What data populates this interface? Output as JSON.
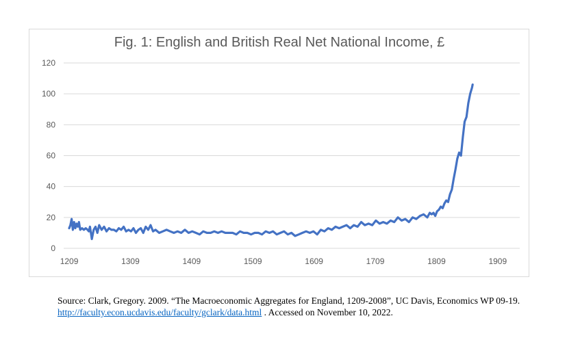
{
  "chart_data": {
    "type": "line",
    "title": "Fig. 1: English and British Real Net National Income, £",
    "xlabel": "",
    "ylabel": "",
    "xlim": [
      1200,
      1945
    ],
    "ylim": [
      0,
      120
    ],
    "x_ticks": [
      "1209",
      "1309",
      "1409",
      "1509",
      "1609",
      "1709",
      "1809",
      "1909"
    ],
    "y_ticks": [
      "0",
      "20",
      "40",
      "60",
      "80",
      "100",
      "120"
    ],
    "grid": true,
    "legend": "none",
    "series": [
      {
        "color": "#4472c4",
        "x": [
          1209,
          1211,
          1213,
          1215,
          1217,
          1219,
          1221,
          1223,
          1225,
          1227,
          1230,
          1233,
          1236,
          1239,
          1241,
          1243,
          1246,
          1249,
          1252,
          1255,
          1258,
          1262,
          1266,
          1270,
          1274,
          1278,
          1282,
          1286,
          1290,
          1294,
          1298,
          1302,
          1306,
          1310,
          1314,
          1318,
          1322,
          1326,
          1330,
          1334,
          1338,
          1342,
          1346,
          1350,
          1356,
          1362,
          1368,
          1374,
          1380,
          1386,
          1392,
          1398,
          1404,
          1410,
          1416,
          1422,
          1428,
          1434,
          1440,
          1446,
          1452,
          1458,
          1464,
          1470,
          1476,
          1482,
          1488,
          1494,
          1500,
          1506,
          1512,
          1518,
          1524,
          1530,
          1536,
          1542,
          1548,
          1554,
          1560,
          1566,
          1572,
          1578,
          1584,
          1590,
          1596,
          1602,
          1608,
          1614,
          1620,
          1626,
          1632,
          1638,
          1644,
          1650,
          1656,
          1662,
          1668,
          1674,
          1680,
          1686,
          1692,
          1698,
          1704,
          1710,
          1716,
          1722,
          1728,
          1734,
          1740,
          1746,
          1752,
          1758,
          1764,
          1770,
          1776,
          1782,
          1788,
          1794,
          1798,
          1801,
          1804,
          1807,
          1810,
          1813,
          1816,
          1819,
          1822,
          1825,
          1828,
          1831,
          1834,
          1837,
          1840,
          1843,
          1846,
          1849,
          1852,
          1855,
          1858,
          1861,
          1864,
          1867,
          1868
        ],
        "values": [
          13,
          15,
          19,
          12,
          17,
          13,
          16,
          14,
          17,
          12,
          13,
          12,
          13,
          12,
          11,
          14,
          6,
          12,
          14,
          10,
          15,
          12,
          14,
          11,
          13,
          12,
          12,
          11,
          13,
          12,
          14,
          11,
          12,
          11,
          13,
          10,
          12,
          13,
          10,
          14,
          12,
          15,
          11,
          12,
          10,
          11,
          12,
          11,
          10,
          11,
          10,
          12,
          10,
          11,
          10,
          9,
          11,
          10,
          10,
          11,
          10,
          11,
          10,
          10,
          10,
          9,
          11,
          10,
          10,
          9,
          10,
          10,
          9,
          11,
          10,
          11,
          9,
          10,
          11,
          9,
          10,
          8,
          9,
          10,
          11,
          10,
          11,
          9,
          12,
          11,
          13,
          12,
          14,
          13,
          14,
          15,
          13,
          15,
          14,
          17,
          15,
          16,
          15,
          18,
          16,
          17,
          16,
          18,
          17,
          20,
          18,
          19,
          17,
          20,
          19,
          21,
          22,
          20,
          23,
          22,
          23,
          21,
          24,
          25,
          27,
          26,
          29,
          31,
          30,
          35,
          38,
          45,
          51,
          58,
          62,
          60,
          72,
          82,
          85,
          94,
          100,
          104,
          106
        ]
      }
    ]
  },
  "source": {
    "line1": "Source: Clark, Gregory.  2009. “The Macroeconomic Aggregates for England, 1209-2008”,  UC Davis, Economics WP 09-19.",
    "link": "http://faculty.econ.ucdavis.edu/faculty/gclark/data.html",
    "after_link": " .  Accessed on November 10, 2022."
  }
}
